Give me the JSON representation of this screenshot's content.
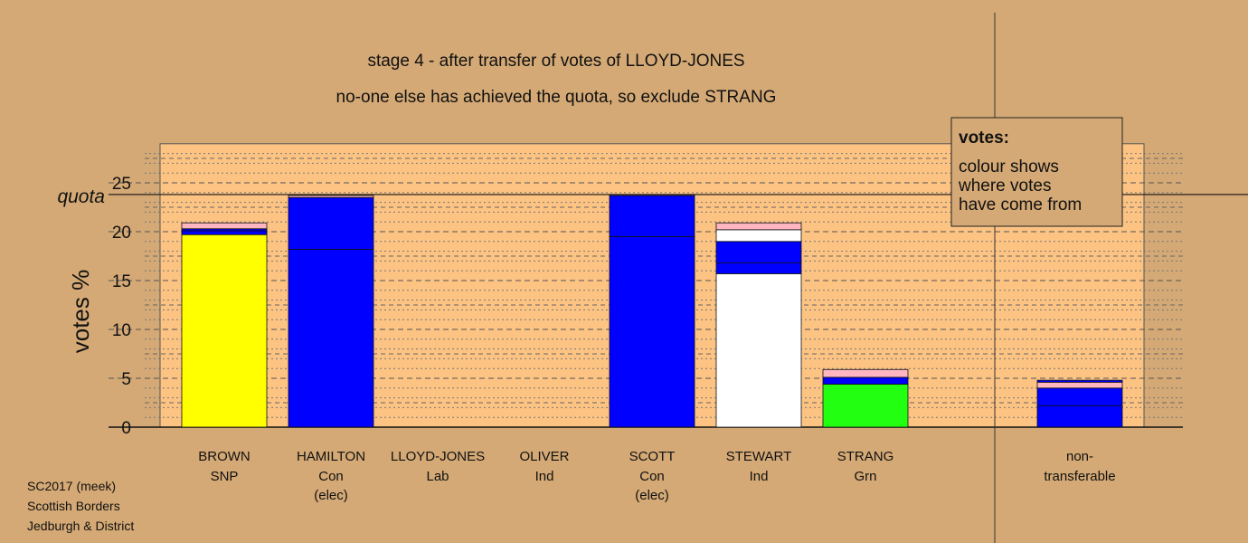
{
  "chart_data": {
    "type": "bar",
    "title": "stage 4 - after transfer of votes of LLOYD-JONES",
    "subtitle": "no-one else has achieved the quota, so exclude STRANG",
    "ylabel": "votes %",
    "ylim": [
      0,
      29
    ],
    "yticks": [
      0,
      5,
      10,
      15,
      20,
      25
    ],
    "quota": 23.8,
    "quota_label": "quota",
    "candidates": [
      {
        "name": "BROWN",
        "party": "SNP",
        "note": "",
        "segments": [
          {
            "from": "BROWN",
            "value": 19.7,
            "color": "#ffff00"
          },
          {
            "from": "HAMILTON/SCOTT",
            "value": 0.4,
            "color": "#0000ff"
          },
          {
            "from": "OLIVER",
            "value": 0.2,
            "color": "#0000ff"
          },
          {
            "from": "LLOYD-JONES",
            "value": 0.6,
            "color": "#ffb6c1"
          }
        ]
      },
      {
        "name": "HAMILTON",
        "party": "Con",
        "note": "(elec)",
        "segments": [
          {
            "from": "HAMILTON",
            "value": 18.2,
            "color": "#0000ff"
          },
          {
            "from": "transfers",
            "value": 5.3,
            "color": "#0000ff"
          },
          {
            "from": "LLOYD-JONES",
            "value": 0.2,
            "color": "#ffb6c1"
          }
        ]
      },
      {
        "name": "LLOYD-JONES",
        "party": "Lab",
        "note": "",
        "segments": []
      },
      {
        "name": "OLIVER",
        "party": "Ind",
        "note": "",
        "segments": []
      },
      {
        "name": "SCOTT",
        "party": "Con",
        "note": "(elec)",
        "segments": [
          {
            "from": "SCOTT",
            "value": 19.5,
            "color": "#0000ff"
          },
          {
            "from": "transfers",
            "value": 4.2,
            "color": "#0000ff"
          },
          {
            "from": "LLOYD-JONES",
            "value": 0.1,
            "color": "#ffb6c1"
          }
        ]
      },
      {
        "name": "STEWART",
        "party": "Ind",
        "note": "",
        "segments": [
          {
            "from": "STEWART",
            "value": 15.7,
            "color": "#ffffff"
          },
          {
            "from": "HAMILTON",
            "value": 1.1,
            "color": "#0000ff"
          },
          {
            "from": "SCOTT",
            "value": 2.2,
            "color": "#0000ff"
          },
          {
            "from": "OLIVER",
            "value": 1.2,
            "color": "#ffffff"
          },
          {
            "from": "LLOYD-JONES",
            "value": 0.7,
            "color": "#ffb6c1"
          }
        ]
      },
      {
        "name": "STRANG",
        "party": "Grn",
        "note": "",
        "segments": [
          {
            "from": "STRANG",
            "value": 4.4,
            "color": "#22ff11"
          },
          {
            "from": "HAMILTON/SCOTT",
            "value": 0.7,
            "color": "#0000ff"
          },
          {
            "from": "LLOYD-JONES",
            "value": 0.8,
            "color": "#ffb6c1"
          }
        ]
      }
    ],
    "nontransferable": {
      "name": "non-",
      "name2": "transferable",
      "segments": [
        {
          "from": "stage 2",
          "value": 2.2,
          "color": "#0000ff"
        },
        {
          "from": "stage 3",
          "value": 1.8,
          "color": "#0000ff"
        },
        {
          "from": "LLOYD-JONES",
          "value": 0.6,
          "color": "#ffb6c1"
        },
        {
          "from": "other",
          "value": 0.2,
          "color": "#0000ff"
        }
      ]
    },
    "legend": {
      "heading": "votes:",
      "lines": [
        "colour shows",
        "where votes",
        "have come from"
      ],
      "placement": "top-right"
    }
  },
  "footer": {
    "lines": [
      "SC2017 (meek)",
      "Scottish Borders",
      "Jedburgh & District"
    ]
  }
}
